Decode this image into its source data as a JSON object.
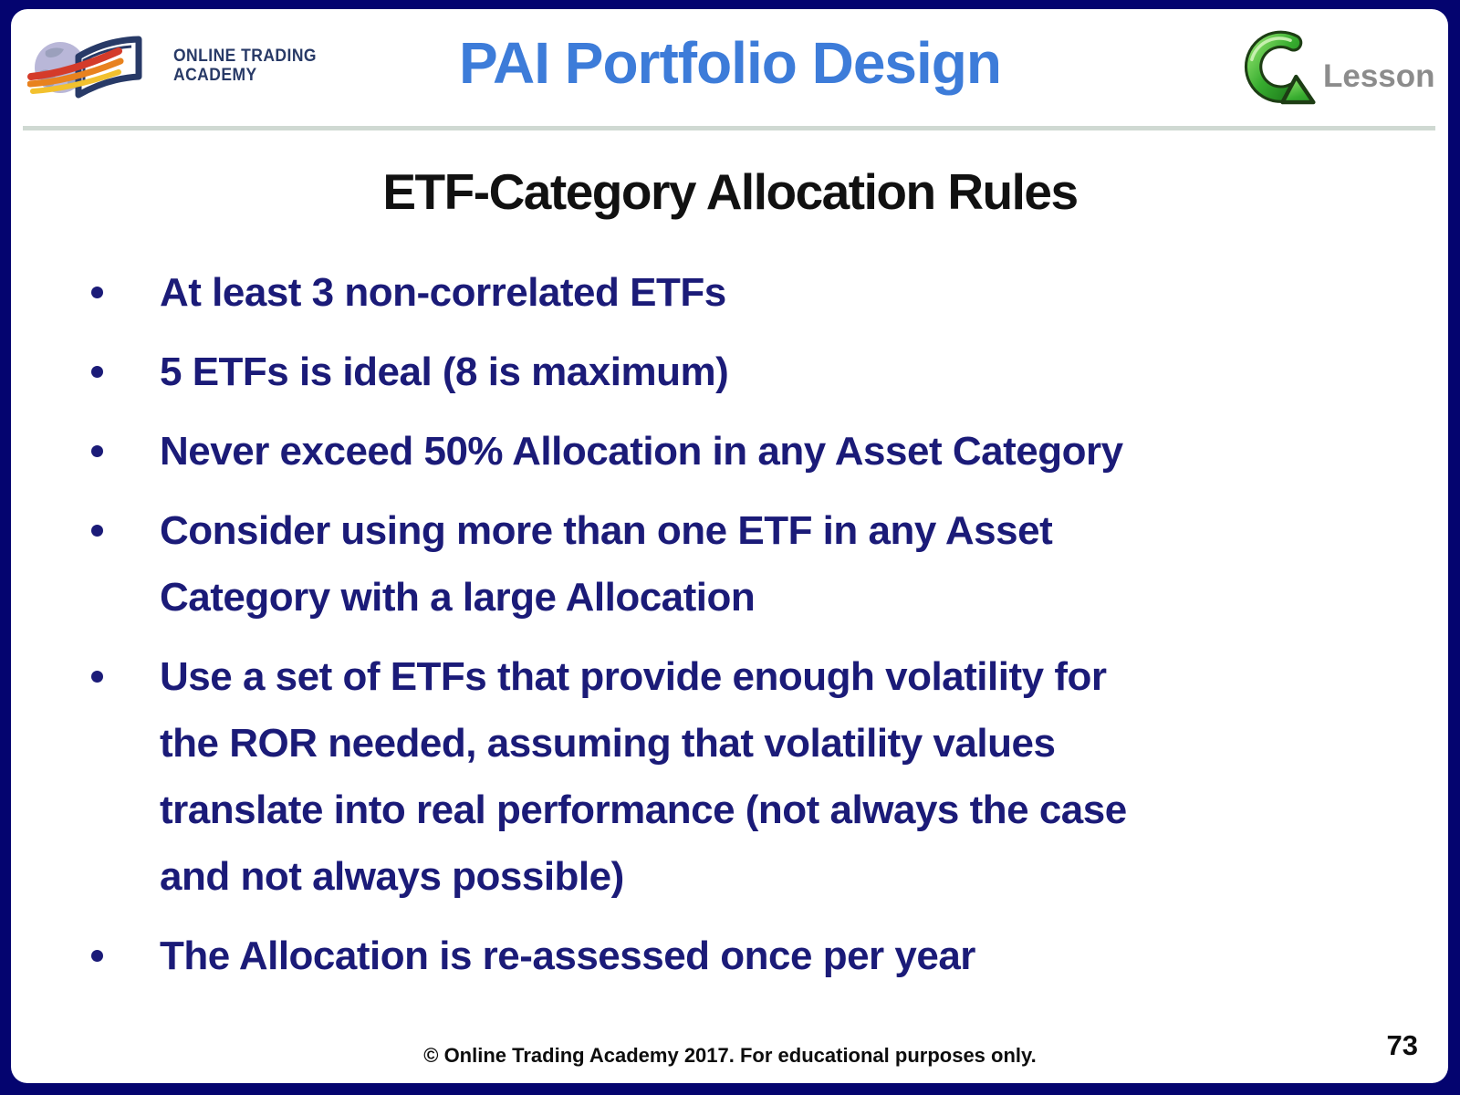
{
  "header": {
    "logo": {
      "line1": "ONLINE TRADING",
      "line2": "ACADEMY"
    },
    "title": "PAI Portfolio Design",
    "lesson_label": "Lesson"
  },
  "main": {
    "heading": "ETF-Category Allocation Rules",
    "bullets": [
      {
        "lines": [
          "At least 3 non-correlated ETFs"
        ]
      },
      {
        "lines": [
          "5 ETFs is ideal (8 is maximum)"
        ]
      },
      {
        "lines": [
          "Never exceed 50% Allocation in any Asset Category"
        ]
      },
      {
        "lines": [
          "Consider using more than one ETF in any Asset",
          "Category with a large Allocation"
        ]
      },
      {
        "lines": [
          "Use a set of ETFs that provide enough volatility for",
          "the ROR needed, assuming that volatility values",
          "translate into real performance (not always the case",
          "and not always possible)"
        ]
      },
      {
        "lines": [
          "The Allocation is re-assessed once per year"
        ]
      }
    ]
  },
  "footer": {
    "copyright": "© Online Trading Academy 2017. For educational purposes only.",
    "page_number": "73"
  },
  "colors": {
    "border_navy": "#04046F",
    "title_blue": "#3D7CD9",
    "bullet_navy": "#1B1B78",
    "heading_black": "#111111",
    "divider_gray": "#CFD9D2",
    "lesson_gray": "#8C8C8C",
    "arrow_green": "#2F9E2F",
    "logo_navy": "#283A67"
  }
}
